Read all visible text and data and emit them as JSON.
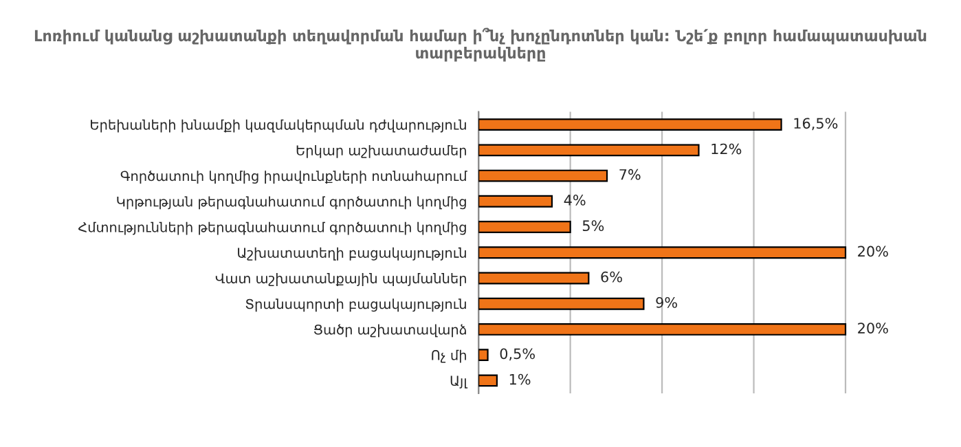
{
  "chart_data": {
    "type": "bar",
    "orientation": "horizontal",
    "title": "Լոռիում կանանց աշխատանքի տեղավորման համար ի՞նչ խոչընդոտներ կան: Նշե՛ք բոլոր համապատասխան տարբերակները",
    "categories": [
      "Երեխաների խնամքի կազմակերպման դժվարություն",
      "Երկար աշխատաժամեր",
      "Գործատուի կողմից իրավունքների ոտնահարում",
      "Կրթության թերագնահատում գործատուի կողմից",
      "Հմտությունների թերագնահատում գործատուի կողմից",
      "Աշխատատեղի բացակայություն",
      "Վատ աշխատանքային պայմաններ",
      "Տրանսպորտի բացակայություն",
      "Ցածր աշխատավարձ",
      "Ոչ մի",
      "Այլ"
    ],
    "values": [
      16.5,
      12,
      7,
      4,
      5,
      20,
      6,
      9,
      20,
      0.5,
      1
    ],
    "value_labels": [
      "16,5%",
      "12%",
      "7%",
      "4%",
      "5%",
      "20%",
      "6%",
      "9%",
      "20%",
      "0,5%",
      "1%"
    ],
    "color": "#f07418",
    "xticks": [
      {
        "value": 0,
        "label": null
      },
      {
        "value": 5,
        "label": null
      },
      {
        "value": 10,
        "label": null
      },
      {
        "value": 15,
        "label": null
      },
      {
        "value": 20,
        "label": null
      }
    ],
    "tick_labels": "y",
    "grid": "x",
    "legend": false
  }
}
